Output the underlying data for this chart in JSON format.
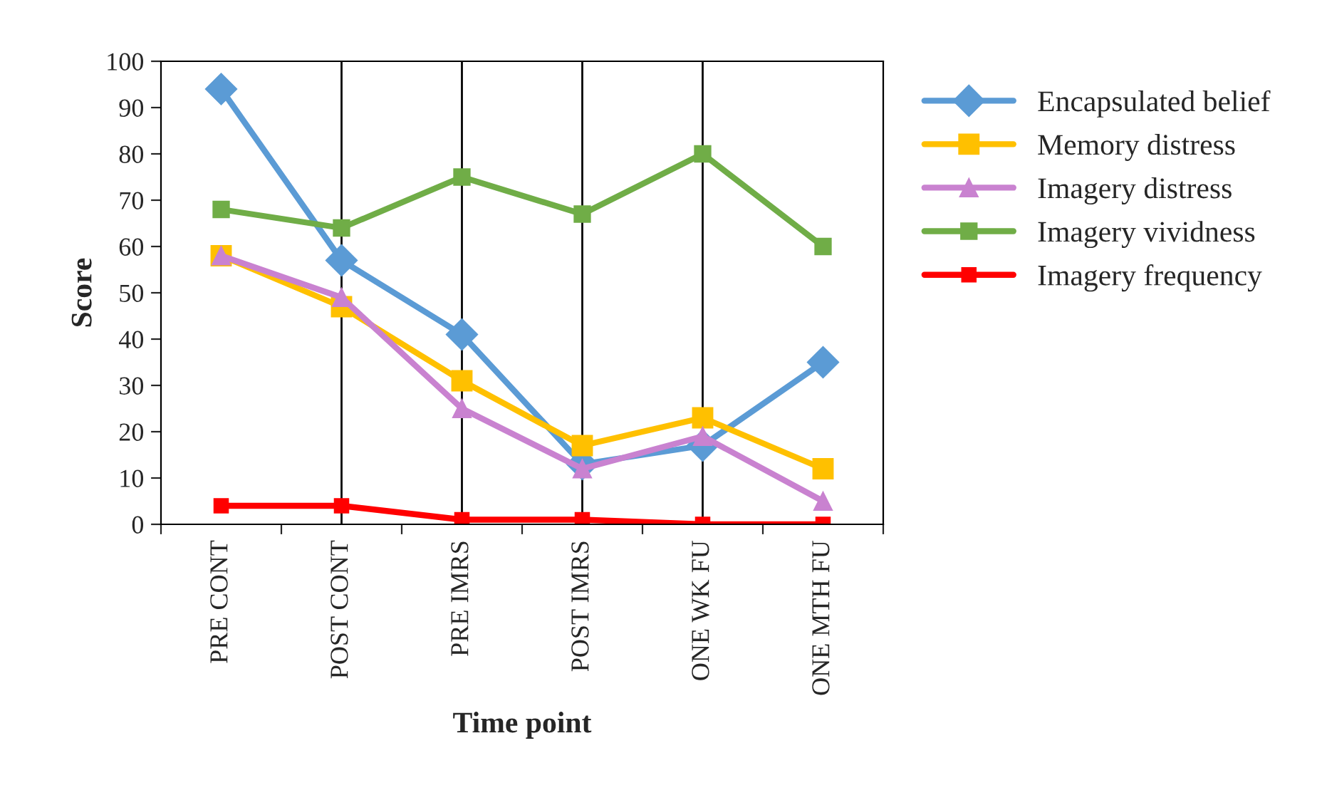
{
  "chart_data": {
    "type": "line",
    "xlabel": "Time point",
    "ylabel": "Score",
    "categories": [
      "PRE CONT",
      "POST CONT",
      "PRE IMRS",
      "POST IMRS",
      "ONE WK FU",
      "ONE MTH FU"
    ],
    "series": [
      {
        "name": "Encapsulated belief",
        "color": "#5b9bd5",
        "marker": "diamond",
        "values": [
          94,
          57,
          41,
          13,
          17,
          35
        ]
      },
      {
        "name": "Memory distress",
        "color": "#ffc000",
        "marker": "square",
        "values": [
          58,
          47,
          31,
          17,
          23,
          12
        ]
      },
      {
        "name": "Imagery distress",
        "color": "#c982d0",
        "marker": "triangle",
        "values": [
          58,
          49,
          25,
          12,
          19,
          5
        ]
      },
      {
        "name": "Imagery vividness",
        "color": "#70ad47",
        "marker": "square",
        "values": [
          68,
          64,
          75,
          67,
          80,
          60
        ]
      },
      {
        "name": "Imagery frequency",
        "color": "#ff0000",
        "marker": "square",
        "values": [
          4,
          4,
          1,
          1,
          0,
          0
        ]
      }
    ],
    "ylim": [
      0,
      100
    ],
    "yticks": [
      0,
      10,
      20,
      30,
      40,
      50,
      60,
      70,
      80,
      90,
      100
    ],
    "grid": "x",
    "legend": "right"
  }
}
